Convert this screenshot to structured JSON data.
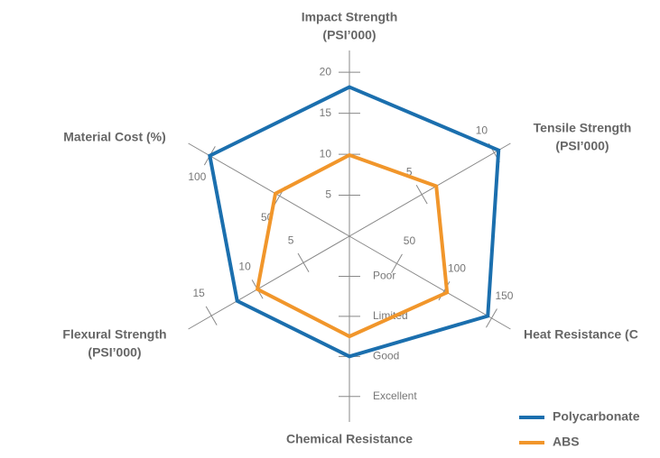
{
  "chart_data": {
    "type": "radar",
    "axes": [
      {
        "label_lines": [
          "Impact Strength",
          "(PSI’000)"
        ],
        "lim": [
          0,
          22
        ],
        "ticks": [
          5,
          10,
          15,
          20
        ]
      },
      {
        "label_lines": [
          "Tensile Strength",
          "(PSI’000)"
        ],
        "lim": [
          0,
          10.8
        ],
        "ticks": [
          5,
          10
        ]
      },
      {
        "label_lines": [
          "Heat Resistance (C"
        ],
        "lim": [
          0,
          165
        ],
        "ticks": [
          50,
          100,
          150
        ]
      },
      {
        "label_lines": [
          "Chemical Resistance"
        ],
        "lim": [
          0,
          4.5
        ],
        "ticks": [
          {
            "value": 1,
            "label": "Poor"
          },
          {
            "value": 2,
            "label": "Limited"
          },
          {
            "value": 3,
            "label": "Good"
          },
          {
            "value": 4,
            "label": "Excellent"
          }
        ]
      },
      {
        "label_lines": [
          "Flexural Strength",
          "(PSI’000)"
        ],
        "lim": [
          0,
          17
        ],
        "ticks": [
          5,
          10,
          15
        ]
      },
      {
        "label_lines": [
          "Material Cost (%)"
        ],
        "lim": [
          0,
          112
        ],
        "ticks": [
          50,
          100
        ]
      }
    ],
    "series": [
      {
        "name": "Polycarbonate",
        "color": "#1b6fae",
        "values": [
          18.2,
          10.3,
          146,
          3,
          12.2,
          100
        ]
      },
      {
        "name": "ABS",
        "color": "#f1962b",
        "values": [
          9.9,
          6,
          103,
          2.5,
          10,
          53
        ]
      }
    ],
    "legend": "lower right"
  }
}
